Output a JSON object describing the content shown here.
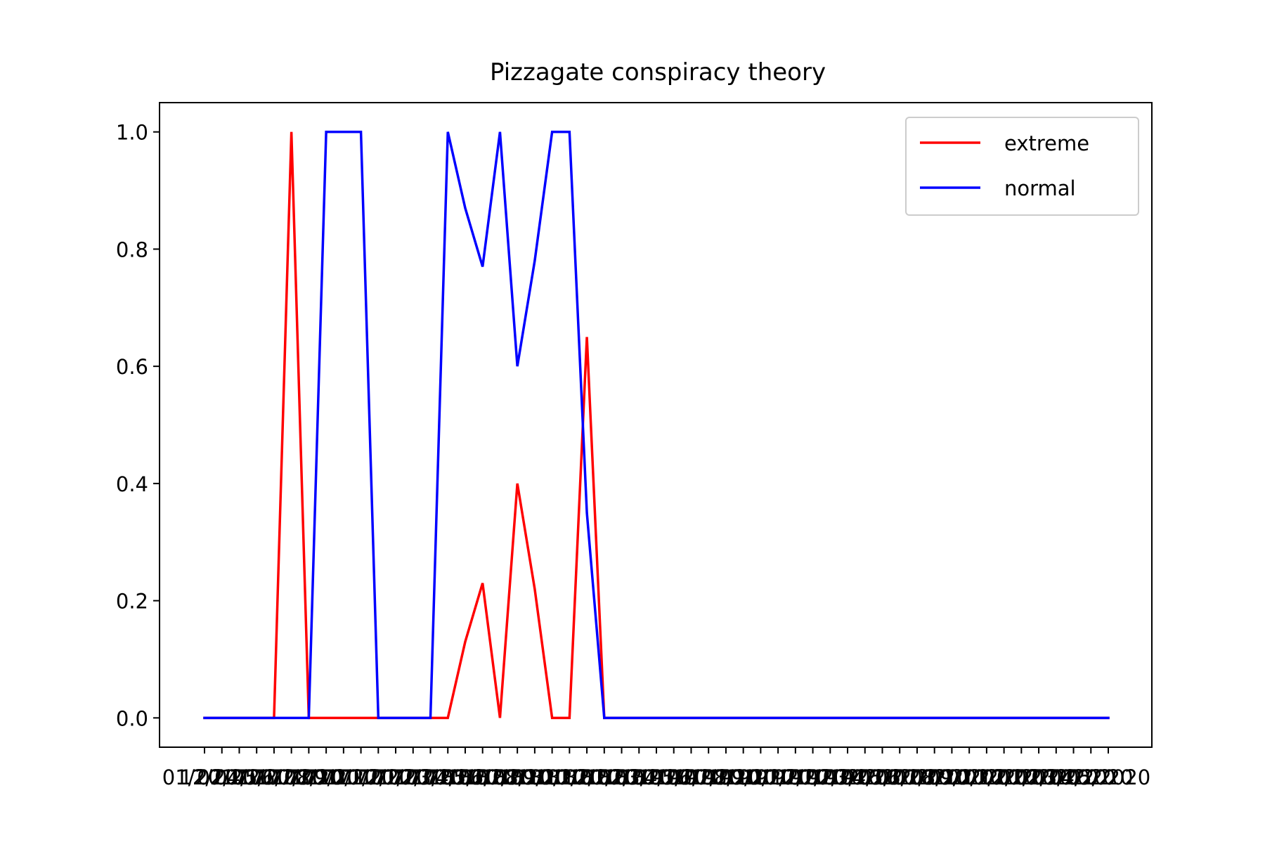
{
  "chart_data": {
    "type": "line",
    "title": "Pizzagate conspiracy theory",
    "xlabel": "",
    "ylabel": "",
    "ylim": [
      -0.05,
      1.05
    ],
    "yticks": [
      "0.0",
      "0.2",
      "0.4",
      "0.6",
      "0.8",
      "1.0"
    ],
    "grid": false,
    "legend_position": "top-right",
    "x": [
      "01/2017",
      "12/2017",
      "02/2017",
      "04/2017",
      "05/2017",
      "06/2017",
      "07/2017",
      "08/2017",
      "09/2017",
      "10/2017",
      "11/2017",
      "12/2017",
      "01/2018",
      "02/2018",
      "03/2018",
      "04/2018",
      "05/2018",
      "06/2018",
      "07/2018",
      "08/2018",
      "09/2018",
      "10/2018",
      "11/2018",
      "12/2018",
      "01/2019",
      "02/2019",
      "03/2019",
      "04/2019",
      "05/2019",
      "06/2019",
      "07/2019",
      "08/2019",
      "09/2019",
      "10/2019",
      "11/2019",
      "12/2019",
      "01/2020",
      "02/2020",
      "03/2020",
      "04/2020",
      "05/2020",
      "06/2020",
      "07/2020",
      "08/2020",
      "09/2020",
      "10/2020",
      "11/2020",
      "12/2020",
      "01/2020",
      "02/2020",
      "03/2020",
      "04/2020",
      "05/2020"
    ],
    "series": [
      {
        "name": "extreme",
        "color": "#ff0000",
        "values": [
          0,
          0,
          0,
          0,
          0,
          1.0,
          0,
          0,
          0,
          0,
          0,
          0,
          0,
          0,
          0,
          0.13,
          0.23,
          0,
          0.4,
          0.22,
          0,
          0,
          0.65,
          0,
          0,
          0,
          0,
          0,
          0,
          0,
          0,
          0,
          0,
          0,
          0,
          0,
          0,
          0,
          0,
          0,
          0,
          0,
          0,
          0,
          0,
          0,
          0,
          0,
          0,
          0,
          0,
          0,
          0
        ]
      },
      {
        "name": "normal",
        "color": "#0000ff",
        "values": [
          0,
          0,
          0,
          0,
          0,
          0,
          0,
          1.0,
          1.0,
          1.0,
          0,
          0,
          0,
          0,
          1.0,
          0.87,
          0.77,
          1.0,
          0.6,
          0.78,
          1.0,
          1.0,
          0.35,
          0,
          0,
          0,
          0,
          0,
          0,
          0,
          0,
          0,
          0,
          0,
          0,
          0,
          0,
          0,
          0,
          0,
          0,
          0,
          0,
          0,
          0,
          0,
          0,
          0,
          0,
          0,
          0,
          0,
          0
        ]
      }
    ]
  }
}
